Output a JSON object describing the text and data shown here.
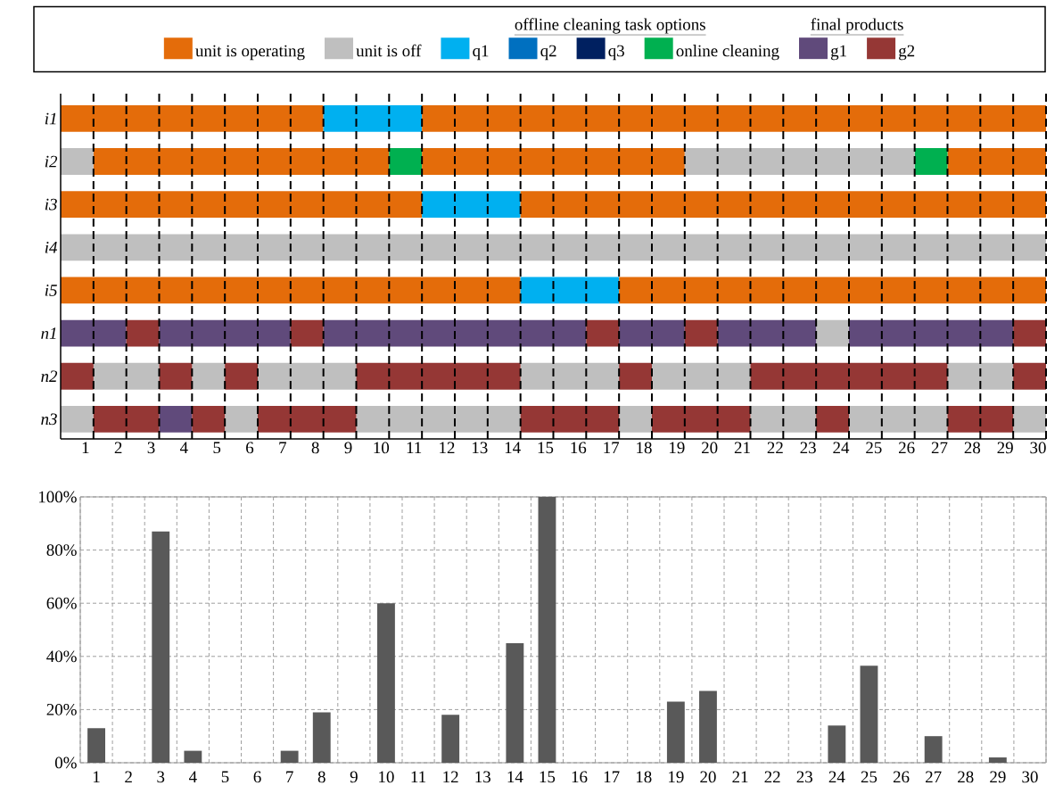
{
  "chart_data": [
    {
      "type": "bar",
      "orientation": "horizontal",
      "categories": [
        "i1",
        "i2",
        "i3",
        "i4",
        "i5",
        "n1",
        "n2",
        "n3"
      ],
      "xlim": [
        0,
        30
      ],
      "xticks": [
        1,
        2,
        3,
        4,
        5,
        6,
        7,
        8,
        9,
        10,
        11,
        12,
        13,
        14,
        15,
        16,
        17,
        18,
        19,
        20,
        21,
        22,
        23,
        24,
        25,
        26,
        27,
        28,
        29,
        30
      ],
      "grid": "x",
      "legend": "top",
      "annotations": [
        "offline cleaning task options",
        "final products"
      ],
      "series": [
        {
          "name": "unit is operating",
          "color": "#e46c0a",
          "base": [
            0,
            1,
            0,
            null,
            0,
            null,
            null,
            null
          ],
          "values": [
            8,
            9,
            11,
            null,
            14,
            null,
            null,
            null
          ]
        },
        {
          "name": "unit is off",
          "color": "#bfbfbf",
          "base": [
            null,
            0,
            null,
            0,
            null,
            23,
            1,
            0
          ],
          "values": [
            null,
            1,
            null,
            30,
            null,
            1,
            2,
            1
          ]
        },
        {
          "name": "q1",
          "color": "#00b0f0",
          "base": [
            8,
            null,
            11,
            null,
            14,
            null,
            null,
            null
          ],
          "values": [
            3,
            null,
            3,
            null,
            3,
            null,
            null,
            null
          ]
        },
        {
          "name": "q2",
          "color": "#0070c0",
          "base": [
            null,
            null,
            null,
            null,
            null,
            null,
            null,
            null
          ],
          "values": [
            null,
            null,
            null,
            null,
            null,
            null,
            null,
            null
          ]
        },
        {
          "name": "q3",
          "color": "#002060",
          "base": [
            null,
            null,
            null,
            null,
            null,
            null,
            null,
            null
          ],
          "values": [
            null,
            null,
            null,
            null,
            null,
            null,
            null,
            null
          ]
        },
        {
          "name": "online cleaning",
          "color": "#00b050",
          "base": [
            null,
            10,
            null,
            null,
            null,
            null,
            null,
            null
          ],
          "values": [
            null,
            1,
            null,
            null,
            null,
            null,
            null,
            null
          ]
        },
        {
          "name": "g1",
          "color": "#604a7b",
          "base": [
            null,
            null,
            null,
            null,
            null,
            0,
            null,
            3
          ],
          "values": [
            null,
            null,
            null,
            null,
            null,
            2,
            null,
            1
          ]
        },
        {
          "name": "g2",
          "color": "#953735",
          "base": [
            null,
            null,
            null,
            null,
            null,
            2,
            0,
            1
          ],
          "values": [
            null,
            null,
            null,
            null,
            null,
            1,
            1,
            2
          ]
        },
        {
          "color": "#e46c0a",
          "base": [
            11,
            11,
            14,
            null,
            17,
            null,
            null,
            null
          ],
          "values": [
            19,
            8,
            16,
            null,
            13,
            null,
            null,
            null
          ]
        },
        {
          "color": "#e46c0a",
          "base": [
            null,
            27,
            null,
            null,
            null,
            null,
            null,
            null
          ],
          "values": [
            null,
            3,
            null,
            null,
            null,
            null,
            null,
            null
          ]
        },
        {
          "color": "#00b050",
          "base": [
            null,
            26,
            null,
            null,
            null,
            null,
            null,
            null
          ],
          "values": [
            null,
            1,
            null,
            null,
            null,
            null,
            null,
            null
          ]
        },
        {
          "color": "#bfbfbf",
          "base": [
            null,
            19,
            null,
            null,
            null,
            null,
            4,
            5
          ],
          "values": [
            null,
            7,
            null,
            null,
            null,
            null,
            1,
            1
          ]
        },
        {
          "color": "#bfbfbf",
          "base": [
            null,
            null,
            null,
            null,
            null,
            null,
            6,
            9
          ],
          "values": [
            null,
            null,
            null,
            null,
            null,
            null,
            3,
            5
          ]
        },
        {
          "color": "#bfbfbf",
          "base": [
            null,
            null,
            null,
            null,
            null,
            null,
            14,
            17
          ],
          "values": [
            null,
            null,
            null,
            null,
            null,
            null,
            3,
            1
          ]
        },
        {
          "color": "#bfbfbf",
          "base": [
            null,
            null,
            null,
            null,
            null,
            null,
            18,
            21
          ],
          "values": [
            null,
            null,
            null,
            null,
            null,
            null,
            3,
            2
          ]
        },
        {
          "color": "#bfbfbf",
          "base": [
            null,
            null,
            null,
            null,
            null,
            null,
            27,
            24
          ],
          "values": [
            null,
            null,
            null,
            null,
            null,
            null,
            2,
            3
          ]
        },
        {
          "color": "#bfbfbf",
          "base": [
            null,
            null,
            null,
            null,
            null,
            null,
            null,
            29
          ],
          "values": [
            null,
            null,
            null,
            null,
            null,
            null,
            null,
            1
          ]
        },
        {
          "color": "#604a7b",
          "base": [
            null,
            null,
            null,
            null,
            null,
            3,
            null,
            null
          ],
          "values": [
            null,
            null,
            null,
            null,
            null,
            4,
            null,
            null
          ]
        },
        {
          "color": "#604a7b",
          "base": [
            null,
            null,
            null,
            null,
            null,
            8,
            null,
            null
          ],
          "values": [
            null,
            null,
            null,
            null,
            null,
            8,
            null,
            null
          ]
        },
        {
          "color": "#604a7b",
          "base": [
            null,
            null,
            null,
            null,
            null,
            17,
            null,
            null
          ],
          "values": [
            null,
            null,
            null,
            null,
            null,
            2,
            null,
            null
          ]
        },
        {
          "color": "#604a7b",
          "base": [
            null,
            null,
            null,
            null,
            null,
            20,
            null,
            null
          ],
          "values": [
            null,
            null,
            null,
            null,
            null,
            3,
            null,
            null
          ]
        },
        {
          "color": "#604a7b",
          "base": [
            null,
            null,
            null,
            null,
            null,
            24,
            null,
            null
          ],
          "values": [
            null,
            null,
            null,
            null,
            null,
            5,
            null,
            null
          ]
        },
        {
          "color": "#953735",
          "base": [
            null,
            null,
            null,
            null,
            null,
            7,
            3,
            4
          ],
          "values": [
            null,
            null,
            null,
            null,
            null,
            1,
            1,
            1
          ]
        },
        {
          "color": "#953735",
          "base": [
            null,
            null,
            null,
            null,
            null,
            16,
            5,
            6
          ],
          "values": [
            null,
            null,
            null,
            null,
            null,
            1,
            1,
            3
          ]
        },
        {
          "color": "#953735",
          "base": [
            null,
            null,
            null,
            null,
            null,
            19,
            9,
            14
          ],
          "values": [
            null,
            null,
            null,
            null,
            null,
            1,
            5,
            3
          ]
        },
        {
          "color": "#953735",
          "base": [
            null,
            null,
            null,
            null,
            null,
            29,
            17,
            18
          ],
          "values": [
            null,
            null,
            null,
            null,
            null,
            1,
            1,
            3
          ]
        },
        {
          "color": "#953735",
          "base": [
            null,
            null,
            null,
            null,
            null,
            null,
            21,
            23
          ],
          "values": [
            null,
            null,
            null,
            null,
            null,
            null,
            6,
            1
          ]
        },
        {
          "color": "#953735",
          "base": [
            null,
            null,
            null,
            null,
            null,
            null,
            29,
            27
          ],
          "values": [
            null,
            null,
            null,
            null,
            null,
            null,
            1,
            2
          ]
        }
      ]
    },
    {
      "type": "bar",
      "categories": [
        "1",
        "2",
        "3",
        "4",
        "5",
        "6",
        "7",
        "8",
        "9",
        "10",
        "11",
        "12",
        "13",
        "14",
        "15",
        "16",
        "17",
        "18",
        "19",
        "20",
        "21",
        "22",
        "23",
        "24",
        "25",
        "26",
        "27",
        "28",
        "29",
        "30"
      ],
      "values": [
        13,
        0,
        87,
        4.5,
        0,
        0,
        4.5,
        19,
        0,
        60,
        0,
        18,
        0,
        45,
        100,
        0,
        0,
        0,
        23,
        27,
        0,
        0,
        0,
        14,
        36.5,
        0,
        10,
        0,
        2,
        0
      ],
      "color": "#595959",
      "ylim": [
        0,
        100
      ],
      "yticks": [
        {
          "value": 0,
          "label": "0%"
        },
        {
          "value": 20,
          "label": "20%"
        },
        {
          "value": 40,
          "label": "40%"
        },
        {
          "value": 60,
          "label": "60%"
        },
        {
          "value": 80,
          "label": "80%"
        },
        {
          "value": 100,
          "label": "100%"
        }
      ],
      "grid": true
    }
  ]
}
